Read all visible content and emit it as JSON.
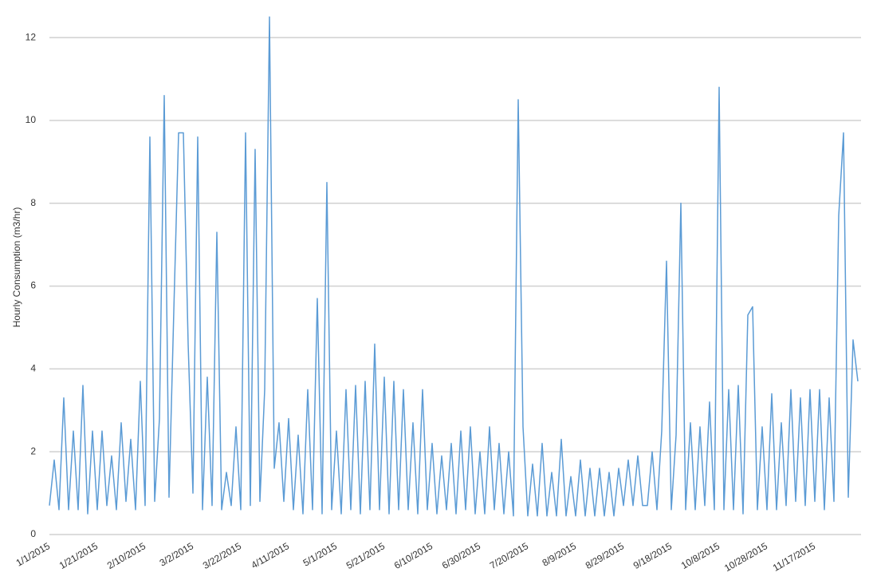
{
  "chart_data": {
    "type": "line",
    "y_label": "Hourly Consumption (m3/hr)",
    "categories": [
      "1/1/2015",
      null,
      null,
      null,
      null,
      null,
      null,
      null,
      null,
      null,
      "1/21/2015",
      null,
      null,
      null,
      null,
      null,
      null,
      null,
      null,
      null,
      "2/10/2015",
      null,
      null,
      null,
      null,
      null,
      null,
      null,
      null,
      null,
      "3/2/2015",
      null,
      null,
      null,
      null,
      null,
      null,
      null,
      null,
      null,
      "3/22/2015",
      null,
      null,
      null,
      null,
      null,
      null,
      null,
      null,
      null,
      "4/11/2015",
      null,
      null,
      null,
      null,
      null,
      null,
      null,
      null,
      null,
      "5/1/2015",
      null,
      null,
      null,
      null,
      null,
      null,
      null,
      null,
      null,
      "5/21/2015",
      null,
      null,
      null,
      null,
      null,
      null,
      null,
      null,
      null,
      "6/10/2015",
      null,
      null,
      null,
      null,
      null,
      null,
      null,
      null,
      null,
      "6/30/2015",
      null,
      null,
      null,
      null,
      null,
      null,
      null,
      null,
      null,
      "7/20/2015",
      null,
      null,
      null,
      null,
      null,
      null,
      null,
      null,
      null,
      "8/9/2015",
      null,
      null,
      null,
      null,
      null,
      null,
      null,
      null,
      null,
      "8/29/2015",
      null,
      null,
      null,
      null,
      null,
      null,
      null,
      null,
      null,
      "9/18/2015",
      null,
      null,
      null,
      null,
      null,
      null,
      null,
      null,
      null,
      "10/8/2015",
      null,
      null,
      null,
      null,
      null,
      null,
      null,
      null,
      null,
      "10/28/2015",
      null,
      null,
      null,
      null,
      null,
      null,
      null,
      null,
      null,
      "11/17/2015",
      null,
      null,
      null,
      null,
      null,
      null,
      null,
      null,
      null
    ],
    "values": [
      0.7,
      1.8,
      0.6,
      3.3,
      0.6,
      2.5,
      0.6,
      3.6,
      0.5,
      2.5,
      0.6,
      2.5,
      0.7,
      1.9,
      0.6,
      2.7,
      0.8,
      2.3,
      0.6,
      3.7,
      0.7,
      9.6,
      0.8,
      2.8,
      10.6,
      0.9,
      5.4,
      9.7,
      9.7,
      4.6,
      1.0,
      9.6,
      0.6,
      3.8,
      0.7,
      7.3,
      0.6,
      1.5,
      0.7,
      2.6,
      0.6,
      9.7,
      0.7,
      9.3,
      0.8,
      3.5,
      12.5,
      1.6,
      2.7,
      0.8,
      2.8,
      0.6,
      2.4,
      0.5,
      3.5,
      0.6,
      5.7,
      0.5,
      8.5,
      0.6,
      2.5,
      0.5,
      3.5,
      0.6,
      3.6,
      0.5,
      3.7,
      0.6,
      4.6,
      0.6,
      3.8,
      0.5,
      3.7,
      0.6,
      3.5,
      0.6,
      2.7,
      0.5,
      3.5,
      0.6,
      2.2,
      0.5,
      1.9,
      0.6,
      2.2,
      0.5,
      2.5,
      0.6,
      2.6,
      0.5,
      2.0,
      0.5,
      2.6,
      0.6,
      2.2,
      0.5,
      2.0,
      0.45,
      10.5,
      2.6,
      0.45,
      1.7,
      0.45,
      2.2,
      0.45,
      1.5,
      0.45,
      2.3,
      0.45,
      1.4,
      0.45,
      1.8,
      0.45,
      1.6,
      0.45,
      1.6,
      0.45,
      1.5,
      0.45,
      1.6,
      0.7,
      1.8,
      0.7,
      1.9,
      0.7,
      0.7,
      2.0,
      0.6,
      2.5,
      6.6,
      0.6,
      2.4,
      8.0,
      0.6,
      2.7,
      0.6,
      2.6,
      0.7,
      3.2,
      0.6,
      10.8,
      0.6,
      3.5,
      0.6,
      3.6,
      0.5,
      5.3,
      5.5,
      0.6,
      2.6,
      0.6,
      3.4,
      0.6,
      2.7,
      0.7,
      3.5,
      0.8,
      3.3,
      0.7,
      3.5,
      0.8,
      3.5,
      0.6,
      3.3,
      0.8,
      7.7,
      9.7,
      0.9,
      4.7,
      3.7
    ],
    "color": "#5b9bd5",
    "ylim": [
      0,
      12.6
    ],
    "yticks": [
      0,
      2,
      4,
      6,
      8,
      10,
      12
    ],
    "grid": true
  }
}
